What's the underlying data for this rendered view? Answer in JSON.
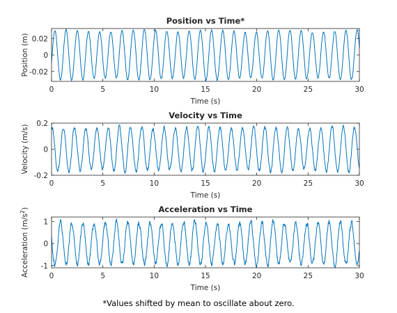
{
  "chart_data": [
    {
      "type": "line",
      "title": "Position vs Time*",
      "xlabel": "Time (s)",
      "ylabel": "Position (m)",
      "xlim": [
        0,
        30
      ],
      "ylim": [
        -0.032,
        0.032
      ],
      "xticks": [
        0,
        5,
        10,
        15,
        20,
        25,
        30
      ],
      "yticks": [
        -0.02,
        0,
        0.02
      ],
      "yticklabels": [
        "-0.02",
        "0",
        "0.02"
      ],
      "color": "#0072bd",
      "signal": {
        "amplitude": 0.029,
        "cycles": 27.5,
        "noise": 0.0008
      }
    },
    {
      "type": "line",
      "title": "Velocity vs Time",
      "xlabel": "Time (s)",
      "ylabel": "Velocity (m/s)",
      "xlim": [
        0,
        30
      ],
      "ylim": [
        -0.2,
        0.2
      ],
      "xticks": [
        0,
        5,
        10,
        15,
        20,
        25,
        30
      ],
      "yticks": [
        -0.2,
        0,
        0.2
      ],
      "yticklabels": [
        "-0.2",
        "0",
        "0.2"
      ],
      "color": "#0072bd",
      "signal": {
        "amplitude": 0.165,
        "cycles": 27.5,
        "noise": 0.01
      }
    },
    {
      "type": "line",
      "title": "Acceleration vs Time",
      "xlabel": "Time (s)",
      "ylabel": "Acceleration (m/s",
      "ylabel_sup": "2",
      "ylabel_end": ")",
      "xlim": [
        0,
        30
      ],
      "ylim": [
        -1.1,
        1.2
      ],
      "xticks": [
        0,
        5,
        10,
        15,
        20,
        25,
        30
      ],
      "yticks": [
        -1,
        0,
        1
      ],
      "yticklabels": [
        "-1",
        "0",
        "1"
      ],
      "color": "#0072bd",
      "signal": {
        "amplitude": 0.95,
        "cycles": 27.5,
        "noise": 0.09
      }
    }
  ],
  "footnote": "*Values shifted by mean to oscillate about zero."
}
